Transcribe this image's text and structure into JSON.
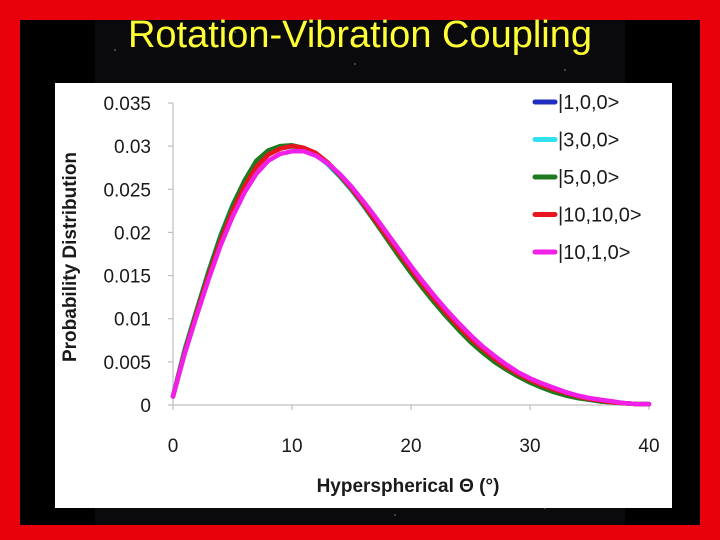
{
  "title": "Rotation-Vibration Coupling",
  "colors": {
    "frame": "#e8000b",
    "title": "#ffff33"
  },
  "chart_data": {
    "type": "line",
    "title": "",
    "xlabel": "Hyperspherical Θ (°)",
    "ylabel": "Probability Distribution",
    "xlim": [
      0,
      40
    ],
    "ylim": [
      0,
      0.035
    ],
    "x_ticks": [
      "0",
      "10",
      "20",
      "30",
      "40"
    ],
    "y_ticks": [
      "0",
      "0.005",
      "0.01",
      "0.015",
      "0.02",
      "0.025",
      "0.03",
      "0.035"
    ],
    "grid": false,
    "legend_position": "top-right",
    "x": [
      0,
      1,
      2,
      3,
      4,
      5,
      6,
      7,
      8,
      9,
      10,
      11,
      12,
      13,
      14,
      15,
      16,
      17,
      18,
      19,
      20,
      21,
      22,
      23,
      24,
      25,
      26,
      27,
      28,
      29,
      30,
      31,
      32,
      33,
      34,
      35,
      36,
      37,
      38,
      39,
      40
    ],
    "series": [
      {
        "name": "|1,0,0>",
        "color": "#1f2fbf",
        "values": [
          0.001,
          0.0065,
          0.011,
          0.0155,
          0.0195,
          0.023,
          0.0258,
          0.028,
          0.0293,
          0.0299,
          0.03,
          0.0297,
          0.029,
          0.0279,
          0.0265,
          0.0249,
          0.0231,
          0.0212,
          0.0193,
          0.0174,
          0.0155,
          0.0137,
          0.012,
          0.0104,
          0.0089,
          0.0075,
          0.0063,
          0.0052,
          0.0042,
          0.0034,
          0.0027,
          0.0021,
          0.0016,
          0.0012,
          0.0009,
          0.0006,
          0.0004,
          0.0003,
          0.0002,
          0.0001,
          0.0001
        ]
      },
      {
        "name": "|3,0,0>",
        "color": "#33e0f0",
        "values": [
          0.001,
          0.0066,
          0.0111,
          0.0156,
          0.0197,
          0.0232,
          0.0259,
          0.0281,
          0.0293,
          0.0298,
          0.0299,
          0.0297,
          0.029,
          0.0279,
          0.0265,
          0.0249,
          0.0231,
          0.0212,
          0.0193,
          0.0174,
          0.0155,
          0.0137,
          0.012,
          0.0104,
          0.0089,
          0.0075,
          0.0063,
          0.0052,
          0.0042,
          0.0034,
          0.0027,
          0.0021,
          0.0016,
          0.0012,
          0.0009,
          0.0006,
          0.0004,
          0.0003,
          0.0002,
          0.0001,
          0.0001
        ]
      },
      {
        "name": "|5,0,0>",
        "color": "#1e7a1e",
        "values": [
          0.001,
          0.0064,
          0.011,
          0.0155,
          0.0196,
          0.0231,
          0.026,
          0.0283,
          0.0295,
          0.03,
          0.0301,
          0.0298,
          0.0291,
          0.028,
          0.0266,
          0.025,
          0.0232,
          0.0212,
          0.0192,
          0.0172,
          0.0153,
          0.0135,
          0.0118,
          0.0102,
          0.0087,
          0.0073,
          0.0061,
          0.005,
          0.0041,
          0.0033,
          0.0026,
          0.002,
          0.0015,
          0.0011,
          0.0008,
          0.0006,
          0.0004,
          0.0003,
          0.0002,
          0.0001,
          0.0001
        ]
      },
      {
        "name": "|10,10,0>",
        "color": "#e8141e",
        "values": [
          0.001,
          0.0062,
          0.0107,
          0.015,
          0.019,
          0.0225,
          0.0253,
          0.0276,
          0.029,
          0.0297,
          0.03,
          0.0298,
          0.0292,
          0.0281,
          0.0267,
          0.0251,
          0.0233,
          0.0214,
          0.0195,
          0.0176,
          0.0157,
          0.0139,
          0.0122,
          0.0106,
          0.0091,
          0.0077,
          0.0065,
          0.0054,
          0.0044,
          0.0036,
          0.0029,
          0.0023,
          0.0018,
          0.0014,
          0.001,
          0.0007,
          0.0005,
          0.0003,
          0.0002,
          0.0001,
          0.0001
        ]
      },
      {
        "name": "|10,1,0>",
        "color": "#f020e8",
        "values": [
          0.001,
          0.006,
          0.0104,
          0.0146,
          0.0185,
          0.0218,
          0.0246,
          0.0268,
          0.0283,
          0.0291,
          0.0294,
          0.0294,
          0.0289,
          0.028,
          0.0268,
          0.0253,
          0.0236,
          0.0218,
          0.0199,
          0.018,
          0.0161,
          0.0143,
          0.0126,
          0.011,
          0.0095,
          0.0081,
          0.0068,
          0.0057,
          0.0047,
          0.0038,
          0.0031,
          0.0025,
          0.002,
          0.0015,
          0.0011,
          0.0008,
          0.0006,
          0.0004,
          0.0002,
          0.0001,
          0.0001
        ]
      }
    ]
  }
}
